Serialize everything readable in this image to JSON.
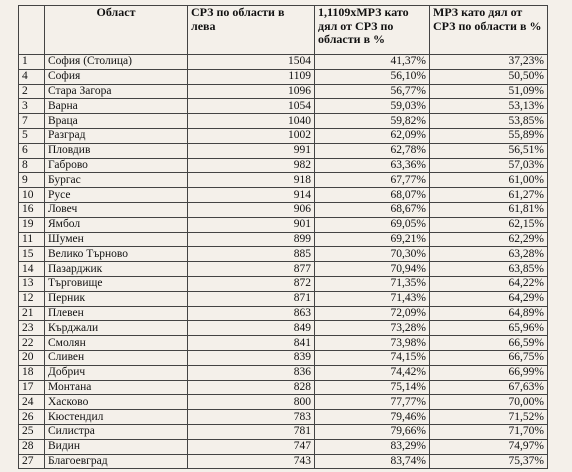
{
  "table": {
    "headers": {
      "num": "",
      "region": "Област",
      "srz": "СРЗ по области в лева",
      "share1": "1,1109хМРЗ като дял от СРЗ по области в %",
      "share2": "МРЗ като дял от СРЗ по области в %"
    },
    "rows": [
      {
        "num": "1",
        "region": "София (Столица)",
        "srz": "1504",
        "share1": "41,37%",
        "share2": "37,23%"
      },
      {
        "num": "4",
        "region": "София",
        "srz": "1109",
        "share1": "56,10%",
        "share2": "50,50%"
      },
      {
        "num": "2",
        "region": "Стара Загора",
        "srz": "1096",
        "share1": "56,77%",
        "share2": "51,09%"
      },
      {
        "num": "3",
        "region": "Варна",
        "srz": "1054",
        "share1": "59,03%",
        "share2": "53,13%"
      },
      {
        "num": "7",
        "region": "Враца",
        "srz": "1040",
        "share1": "59,82%",
        "share2": "53,85%"
      },
      {
        "num": "5",
        "region": "Разград",
        "srz": "1002",
        "share1": "62,09%",
        "share2": "55,89%"
      },
      {
        "num": "6",
        "region": "Пловдив",
        "srz": "991",
        "share1": "62,78%",
        "share2": "56,51%"
      },
      {
        "num": "8",
        "region": "Габрово",
        "srz": "982",
        "share1": "63,36%",
        "share2": "57,03%"
      },
      {
        "num": "9",
        "region": "Бургас",
        "srz": "918",
        "share1": "67,77%",
        "share2": "61,00%"
      },
      {
        "num": "10",
        "region": "Русе",
        "srz": "914",
        "share1": "68,07%",
        "share2": "61,27%"
      },
      {
        "num": "16",
        "region": "Ловеч",
        "srz": "906",
        "share1": "68,67%",
        "share2": "61,81%"
      },
      {
        "num": "19",
        "region": "Ямбол",
        "srz": "901",
        "share1": "69,05%",
        "share2": "62,15%"
      },
      {
        "num": "11",
        "region": "Шумен",
        "srz": "899",
        "share1": "69,21%",
        "share2": "62,29%"
      },
      {
        "num": "15",
        "region": "Велико Търново",
        "srz": "885",
        "share1": "70,30%",
        "share2": "63,28%"
      },
      {
        "num": "14",
        "region": "Пазарджик",
        "srz": "877",
        "share1": "70,94%",
        "share2": "63,85%"
      },
      {
        "num": "13",
        "region": "Търговище",
        "srz": "872",
        "share1": "71,35%",
        "share2": "64,22%"
      },
      {
        "num": "12",
        "region": "Перник",
        "srz": "871",
        "share1": "71,43%",
        "share2": "64,29%"
      },
      {
        "num": "21",
        "region": "Плевен",
        "srz": "863",
        "share1": "72,09%",
        "share2": "64,89%"
      },
      {
        "num": "23",
        "region": "Кърджали",
        "srz": "849",
        "share1": "73,28%",
        "share2": "65,96%"
      },
      {
        "num": "22",
        "region": "Смолян",
        "srz": "841",
        "share1": "73,98%",
        "share2": "66,59%"
      },
      {
        "num": "20",
        "region": "Сливен",
        "srz": "839",
        "share1": "74,15%",
        "share2": "66,75%"
      },
      {
        "num": "18",
        "region": "Добрич",
        "srz": "836",
        "share1": "74,42%",
        "share2": "66,99%"
      },
      {
        "num": "17",
        "region": "Монтана",
        "srz": "828",
        "share1": "75,14%",
        "share2": "67,63%"
      },
      {
        "num": "24",
        "region": "Хасково",
        "srz": "800",
        "share1": "77,77%",
        "share2": "70,00%"
      },
      {
        "num": "26",
        "region": "Кюстендил",
        "srz": "783",
        "share1": "79,46%",
        "share2": "71,52%"
      },
      {
        "num": "25",
        "region": "Силистра",
        "srz": "781",
        "share1": "79,66%",
        "share2": "71,70%"
      },
      {
        "num": "28",
        "region": "Видин",
        "srz": "747",
        "share1": "83,29%",
        "share2": "74,97%"
      },
      {
        "num": "27",
        "region": "Благоевград",
        "srz": "743",
        "share1": "83,74%",
        "share2": "75,37%"
      }
    ]
  }
}
